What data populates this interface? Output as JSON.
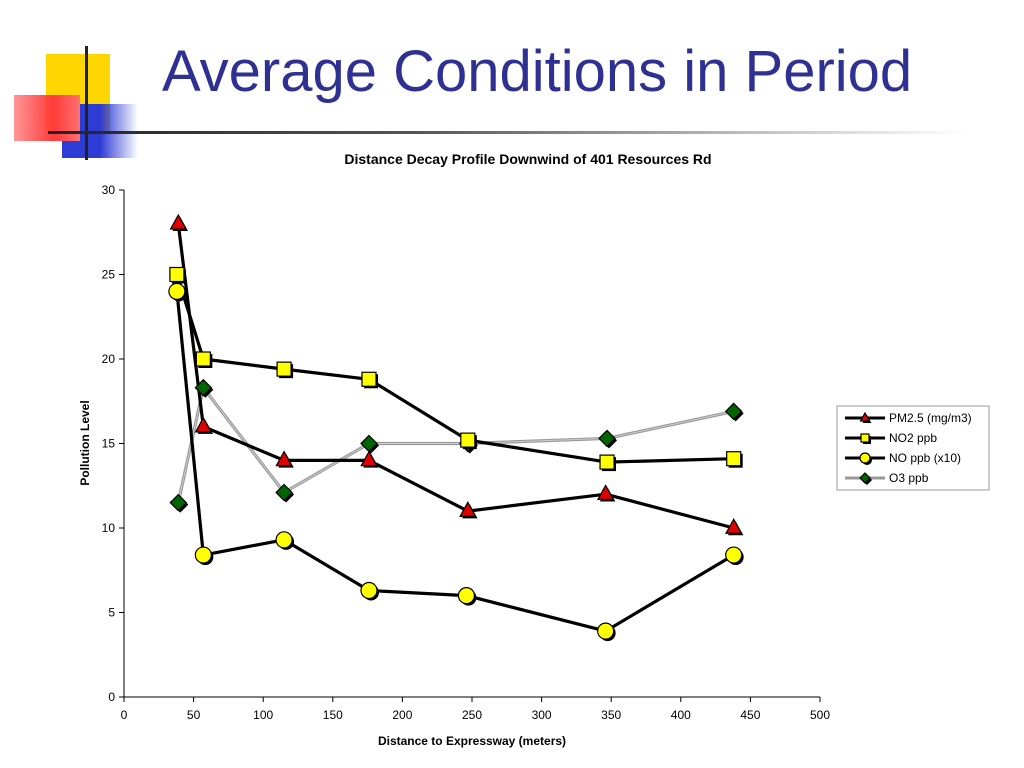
{
  "slide": {
    "title": "Average Conditions in Period"
  },
  "colors": {
    "title": "#2e3192",
    "deco_yellow": "#ffd700",
    "deco_red": "#ff3b3b",
    "deco_blue": "#2e3cd6",
    "pm25": "#e00000",
    "no2": "#ffff00",
    "no": "#ffff00",
    "o3": "#006400"
  },
  "chart_data": {
    "type": "line",
    "title": "Distance Decay Profile Downwind of 401 Resources Rd",
    "xlabel": "Distance to Expressway (meters)",
    "ylabel": "Pollution Level",
    "xlim": [
      0,
      500
    ],
    "ylim": [
      0,
      30
    ],
    "xticks": [
      0,
      50,
      100,
      150,
      200,
      250,
      300,
      350,
      400,
      450,
      500
    ],
    "yticks": [
      0,
      5,
      10,
      15,
      20,
      25,
      30
    ],
    "grid": false,
    "legend": "right",
    "series": [
      {
        "name": "PM2.5 (mg/m3)",
        "key": "pm25",
        "marker": "triangle",
        "line": "#000000",
        "points": [
          [
            39,
            28
          ],
          [
            57,
            16
          ],
          [
            115,
            14
          ],
          [
            176,
            14
          ],
          [
            247,
            11
          ],
          [
            346,
            12
          ],
          [
            438,
            10
          ]
        ]
      },
      {
        "name": "NO2 ppb",
        "key": "no2",
        "marker": "square",
        "line": "#000000",
        "points": [
          [
            38,
            25
          ],
          [
            57,
            20
          ],
          [
            115,
            19.4
          ],
          [
            176,
            18.8
          ],
          [
            247,
            15.2
          ],
          [
            347,
            13.9
          ],
          [
            438,
            14.1
          ]
        ]
      },
      {
        "name": "NO ppb (x10)",
        "key": "no",
        "marker": "circle",
        "line": "#000000",
        "points": [
          [
            38,
            24
          ],
          [
            57,
            8.4
          ],
          [
            115,
            9.3
          ],
          [
            176,
            6.3
          ],
          [
            246,
            6
          ],
          [
            346,
            3.9
          ],
          [
            438,
            8.4
          ]
        ]
      },
      {
        "name": "O3 ppb",
        "key": "o3",
        "marker": "diamond",
        "line": "#999999",
        "points": [
          [
            39,
            11.5
          ],
          [
            57,
            18.3
          ],
          [
            115,
            12.1
          ],
          [
            176,
            15
          ],
          [
            247,
            15
          ],
          [
            347,
            15.3
          ],
          [
            438,
            16.9
          ]
        ]
      }
    ]
  }
}
